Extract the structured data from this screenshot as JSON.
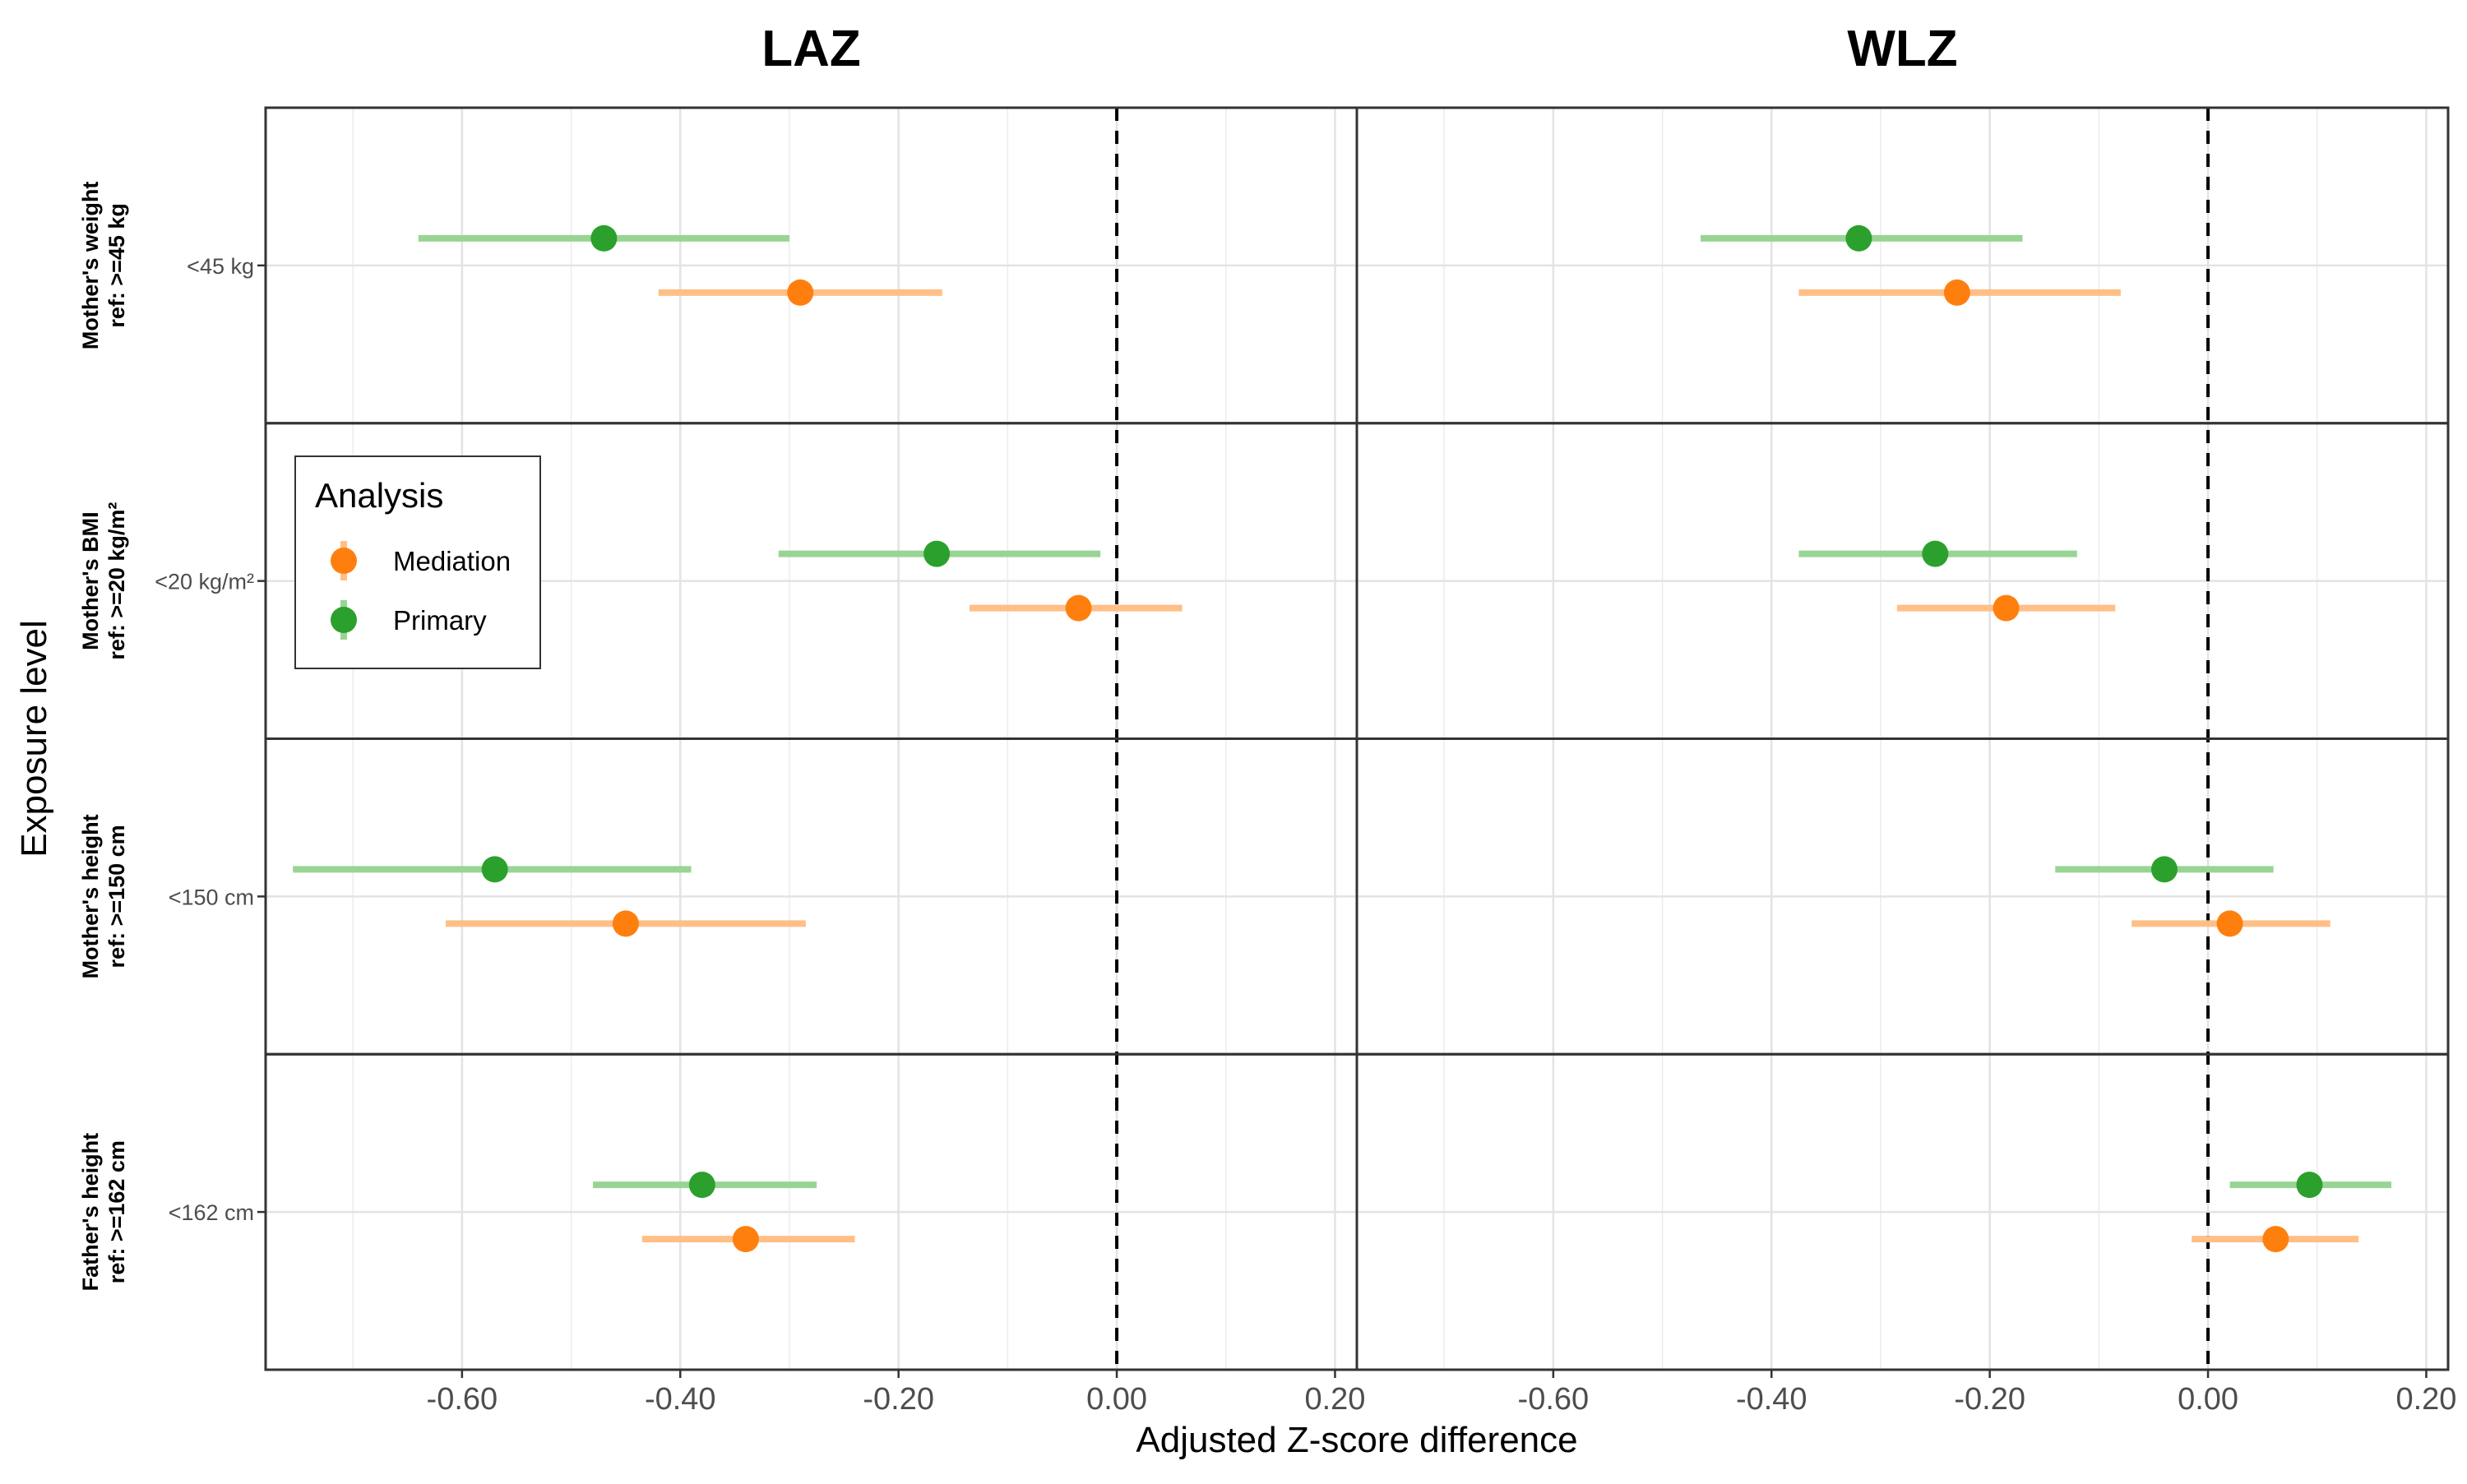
{
  "chart_data": {
    "type": "forest",
    "xlabel": "Adjusted Z-score difference",
    "ylabel": "Exposure level",
    "panels": [
      "LAZ",
      "WLZ"
    ],
    "rows": [
      {
        "strip": [
          "Mother's weight",
          "ref: >=45 kg"
        ],
        "level": "<45 kg"
      },
      {
        "strip": [
          "Mother's BMI",
          "ref: >=20 kg/m²"
        ],
        "level": "<20 kg/m²"
      },
      {
        "strip": [
          "Mother's height",
          "ref: >=150 cm"
        ],
        "level": "<150 cm"
      },
      {
        "strip": [
          "Father's height",
          "ref: >=162 cm"
        ],
        "level": "<162 cm"
      }
    ],
    "xlim": [
      -0.78,
      0.22
    ],
    "xticks": [
      -0.6,
      -0.4,
      -0.2,
      0.0,
      0.2
    ],
    "xtick_labels": [
      "-0.60",
      "-0.40",
      "-0.20",
      "0.00",
      "0.20"
    ],
    "reference_line": 0,
    "legend": {
      "title": "Analysis",
      "position": "top-left"
    },
    "series": [
      {
        "name": "Primary",
        "color": "#2ca02c",
        "ci_color": "#98d594",
        "values": {
          "LAZ": [
            {
              "est": -0.47,
              "lo": -0.64,
              "hi": -0.3
            },
            {
              "est": -0.165,
              "lo": -0.31,
              "hi": -0.015
            },
            {
              "est": -0.57,
              "lo": -0.755,
              "hi": -0.39
            },
            {
              "est": -0.38,
              "lo": -0.48,
              "hi": -0.275
            }
          ],
          "WLZ": [
            {
              "est": -0.32,
              "lo": -0.465,
              "hi": -0.17
            },
            {
              "est": -0.25,
              "lo": -0.375,
              "hi": -0.12
            },
            {
              "est": -0.04,
              "lo": -0.14,
              "hi": 0.06
            },
            {
              "est": 0.093,
              "lo": 0.02,
              "hi": 0.168
            }
          ]
        }
      },
      {
        "name": "Mediation",
        "color": "#ff7f0e",
        "ci_color": "#ffbf86",
        "values": {
          "LAZ": [
            {
              "est": -0.29,
              "lo": -0.42,
              "hi": -0.16
            },
            {
              "est": -0.035,
              "lo": -0.135,
              "hi": 0.06
            },
            {
              "est": -0.45,
              "lo": -0.615,
              "hi": -0.285
            },
            {
              "est": -0.34,
              "lo": -0.435,
              "hi": -0.24
            }
          ],
          "WLZ": [
            {
              "est": -0.23,
              "lo": -0.375,
              "hi": -0.08
            },
            {
              "est": -0.185,
              "lo": -0.285,
              "hi": -0.085
            },
            {
              "est": 0.02,
              "lo": -0.07,
              "hi": 0.112
            },
            {
              "est": 0.062,
              "lo": -0.015,
              "hi": 0.138
            }
          ]
        }
      }
    ]
  }
}
